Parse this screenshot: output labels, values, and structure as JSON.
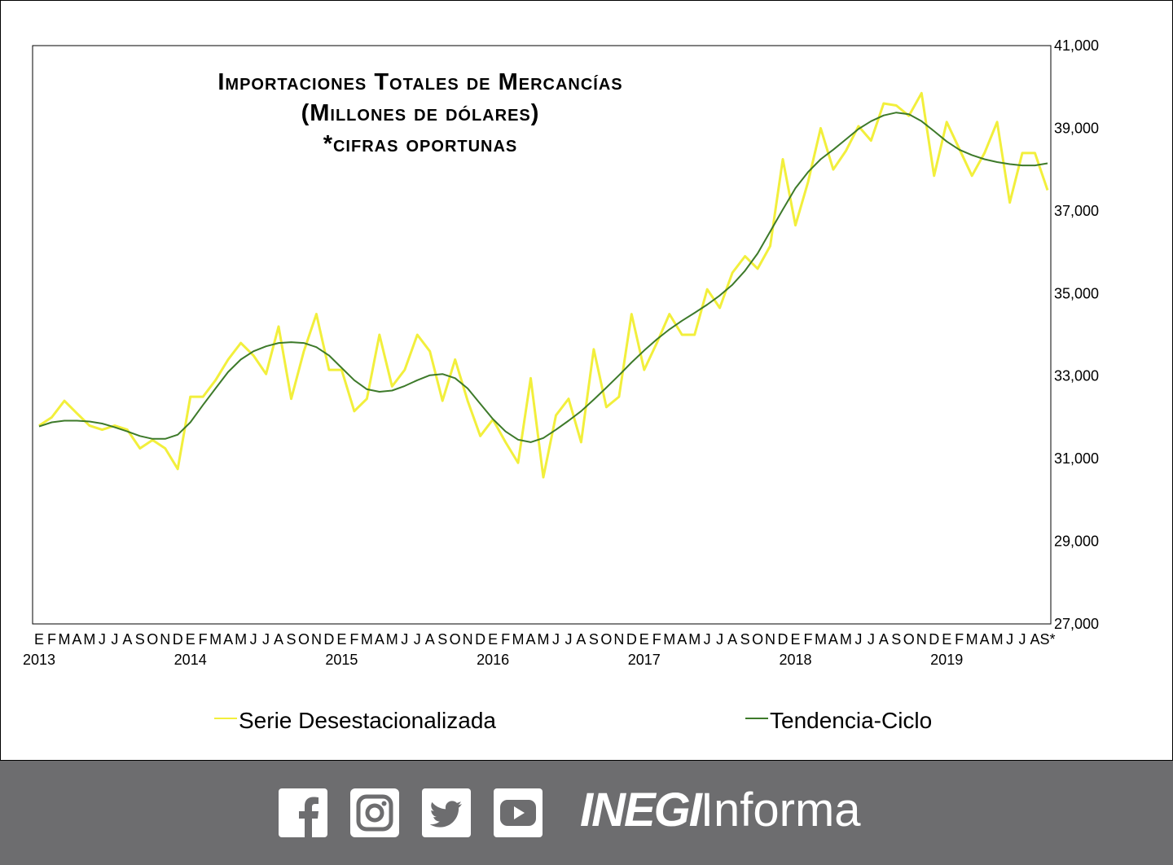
{
  "chart_data": {
    "type": "line",
    "title_lines": [
      "Importaciones Totales de Mercancías",
      "(Millones de dólares)",
      "*cifras oportunas"
    ],
    "xlabel": "",
    "ylabel": "",
    "ylim": [
      27000,
      41000
    ],
    "y_ticks": [
      27000,
      29000,
      31000,
      33000,
      35000,
      37000,
      39000,
      41000
    ],
    "y_tick_labels": [
      "27,000",
      "29,000",
      "31,000",
      "33,000",
      "35,000",
      "37,000",
      "39,000",
      "41,000"
    ],
    "y_axis_side": "right",
    "grid": false,
    "legend_position": "bottom",
    "month_labels": [
      "E",
      "F",
      "M",
      "A",
      "M",
      "J",
      "J",
      "A",
      "S",
      "O",
      "N",
      "D",
      "E",
      "F",
      "M",
      "A",
      "M",
      "J",
      "J",
      "A",
      "S",
      "O",
      "N",
      "D",
      "E",
      "F",
      "M",
      "A",
      "M",
      "J",
      "J",
      "A",
      "S",
      "O",
      "N",
      "D",
      "E",
      "F",
      "M",
      "A",
      "M",
      "J",
      "J",
      "A",
      "S",
      "O",
      "N",
      "D",
      "E",
      "F",
      "M",
      "A",
      "M",
      "J",
      "J",
      "A",
      "S",
      "O",
      "N",
      "D",
      "E",
      "F",
      "M",
      "A",
      "M",
      "J",
      "J",
      "A",
      "S",
      "O",
      "N",
      "D",
      "E",
      "F",
      "M",
      "A",
      "M",
      "J",
      "J",
      "A",
      "S*"
    ],
    "year_labels": [
      {
        "label": "2013",
        "index": 0
      },
      {
        "label": "2014",
        "index": 12
      },
      {
        "label": "2015",
        "index": 24
      },
      {
        "label": "2016",
        "index": 36
      },
      {
        "label": "2017",
        "index": 48
      },
      {
        "label": "2018",
        "index": 60
      },
      {
        "label": "2019",
        "index": 72
      }
    ],
    "series": [
      {
        "name": "Serie Desestacionalizada",
        "color": "#f2ef3c",
        "values": [
          31800,
          32000,
          32400,
          32100,
          31800,
          31700,
          31800,
          31700,
          31250,
          31450,
          31250,
          30750,
          32500,
          32500,
          32900,
          33400,
          33800,
          33500,
          33050,
          34200,
          32450,
          33600,
          34500,
          33150,
          33150,
          32150,
          32450,
          34000,
          32750,
          33150,
          34000,
          33600,
          32400,
          33400,
          32400,
          31550,
          31950,
          31400,
          30900,
          32950,
          30550,
          32050,
          32450,
          31400,
          33650,
          32250,
          32500,
          34500,
          33150,
          33800,
          34500,
          34000,
          34000,
          35100,
          34650,
          35500,
          35900,
          35600,
          36150,
          38250,
          36650,
          37700,
          39000,
          38000,
          38450,
          39050,
          38700,
          39600,
          39550,
          39300,
          39850,
          37850,
          39150,
          38500,
          37850,
          38400,
          39150,
          37200,
          38400,
          38400,
          37500
        ]
      },
      {
        "name": "Tendencia-Ciclo",
        "color": "#3d7a2a",
        "values": [
          31780,
          31880,
          31920,
          31920,
          31900,
          31850,
          31760,
          31660,
          31550,
          31480,
          31480,
          31580,
          31880,
          32300,
          32700,
          33100,
          33400,
          33600,
          33720,
          33800,
          33820,
          33800,
          33700,
          33500,
          33200,
          32900,
          32680,
          32620,
          32650,
          32760,
          32900,
          33020,
          33050,
          32950,
          32700,
          32330,
          31960,
          31660,
          31460,
          31400,
          31500,
          31700,
          31920,
          32150,
          32430,
          32720,
          33020,
          33330,
          33620,
          33890,
          34130,
          34340,
          34530,
          34730,
          34950,
          35210,
          35550,
          35970,
          36500,
          37030,
          37550,
          37940,
          38250,
          38480,
          38730,
          38980,
          39170,
          39310,
          39380,
          39340,
          39170,
          38930,
          38680,
          38480,
          38350,
          38250,
          38180,
          38130,
          38100,
          38100,
          38150
        ]
      }
    ]
  },
  "legend": {
    "items": [
      {
        "label": "Serie Desestacionalizada",
        "color": "#f2ef3c"
      },
      {
        "label": "Tendencia-Ciclo",
        "color": "#3d7a2a"
      }
    ]
  },
  "footer": {
    "icons": [
      "facebook-icon",
      "instagram-icon",
      "twitter-icon",
      "youtube-icon"
    ],
    "brand_bold": "INEGI",
    "brand_light": "Informa",
    "background": "#6d6d6f"
  }
}
